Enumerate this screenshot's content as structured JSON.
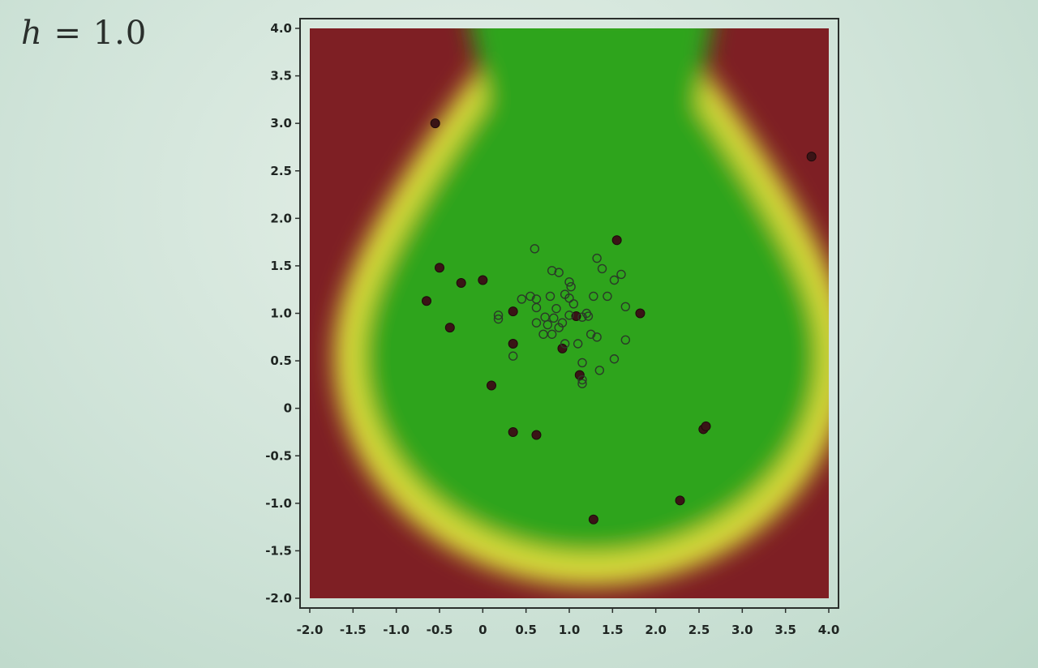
{
  "slide": {
    "title_var": "h",
    "title_rest": " = 1.0"
  },
  "colors": {
    "outside": "#7e1f24",
    "boundary": "#d8dc3a",
    "inside": "#2fa41a",
    "marker": "#3a1416"
  },
  "chart_data": {
    "type": "scatter",
    "title": "",
    "xlabel": "",
    "ylabel": "",
    "xlim": [
      -2.0,
      4.0
    ],
    "ylim": [
      -2.0,
      4.0
    ],
    "xticks": [
      "-2.0",
      "-1.5",
      "-1.0",
      "-0.5",
      "0",
      "0.5",
      "1.0",
      "1.5",
      "2.0",
      "2.5",
      "3.0",
      "3.5",
      "4.0"
    ],
    "yticks": [
      "4.0",
      "3.5",
      "3.0",
      "2.5",
      "2.0",
      "1.5",
      "1.0",
      "0.5",
      "0",
      "-0.5",
      "-1.0",
      "-1.5",
      "-2.0"
    ],
    "grid": false,
    "legend": "none",
    "background": "decision region heatmap: green inside, yellow boundary, dark red outside",
    "series": [
      {
        "marker": "filled",
        "points": [
          [
            -0.55,
            3.0
          ],
          [
            -0.5,
            1.48
          ],
          [
            -0.65,
            1.13
          ],
          [
            -0.25,
            1.32
          ],
          [
            0.0,
            1.35
          ],
          [
            -0.38,
            0.85
          ],
          [
            0.35,
            1.02
          ],
          [
            0.35,
            0.68
          ],
          [
            0.1,
            0.24
          ],
          [
            0.35,
            -0.25
          ],
          [
            0.62,
            -0.28
          ],
          [
            0.92,
            0.63
          ],
          [
            1.08,
            0.97
          ],
          [
            1.12,
            0.35
          ],
          [
            1.55,
            1.77
          ],
          [
            1.82,
            1.0
          ],
          [
            1.28,
            -1.17
          ],
          [
            2.28,
            -0.97
          ],
          [
            2.55,
            -0.22
          ],
          [
            2.58,
            -0.19
          ],
          [
            3.8,
            2.65
          ]
        ]
      },
      {
        "marker": "hollow",
        "points": [
          [
            0.6,
            1.68
          ],
          [
            0.8,
            1.45
          ],
          [
            0.88,
            1.43
          ],
          [
            1.0,
            1.33
          ],
          [
            1.02,
            1.28
          ],
          [
            1.32,
            1.58
          ],
          [
            1.38,
            1.47
          ],
          [
            1.52,
            1.35
          ],
          [
            1.6,
            1.41
          ],
          [
            1.44,
            1.18
          ],
          [
            1.28,
            1.18
          ],
          [
            0.55,
            1.18
          ],
          [
            0.45,
            1.15
          ],
          [
            0.62,
            1.15
          ],
          [
            0.78,
            1.18
          ],
          [
            0.95,
            1.2
          ],
          [
            1.0,
            1.16
          ],
          [
            1.05,
            1.1
          ],
          [
            0.62,
            1.06
          ],
          [
            0.85,
            1.05
          ],
          [
            0.18,
            0.98
          ],
          [
            0.18,
            0.94
          ],
          [
            0.82,
            0.95
          ],
          [
            0.72,
            0.96
          ],
          [
            1.0,
            0.98
          ],
          [
            1.15,
            0.96
          ],
          [
            1.2,
            1.0
          ],
          [
            1.22,
            0.97
          ],
          [
            1.65,
            1.07
          ],
          [
            0.62,
            0.9
          ],
          [
            0.75,
            0.88
          ],
          [
            0.88,
            0.85
          ],
          [
            0.92,
            0.9
          ],
          [
            0.7,
            0.78
          ],
          [
            0.8,
            0.78
          ],
          [
            1.25,
            0.78
          ],
          [
            1.32,
            0.75
          ],
          [
            1.65,
            0.72
          ],
          [
            0.95,
            0.68
          ],
          [
            1.1,
            0.68
          ],
          [
            0.35,
            0.55
          ],
          [
            1.15,
            0.48
          ],
          [
            1.52,
            0.52
          ],
          [
            1.35,
            0.4
          ],
          [
            1.15,
            0.3
          ],
          [
            1.15,
            0.26
          ]
        ]
      }
    ]
  }
}
